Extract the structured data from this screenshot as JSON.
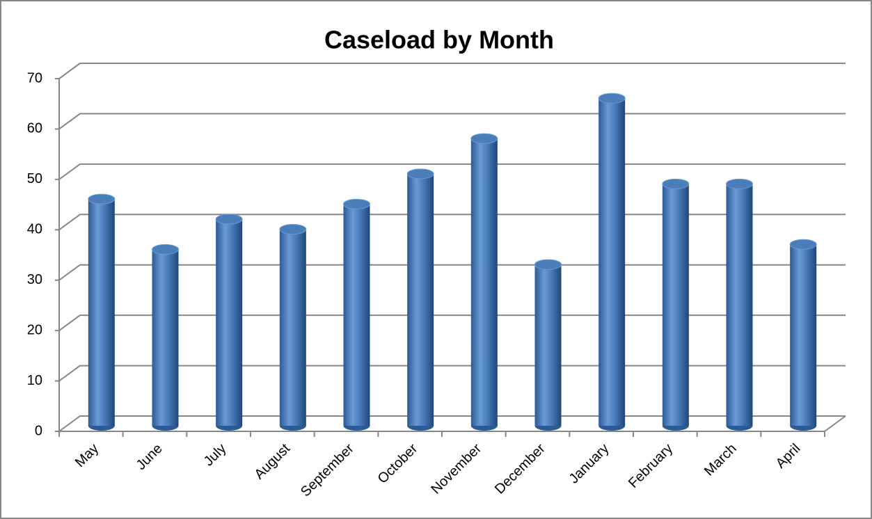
{
  "chart_data": {
    "type": "bar",
    "title": "Caseload by Month",
    "categories": [
      "May",
      "June",
      "July",
      "August",
      "September",
      "October",
      "November",
      "December",
      "January",
      "February",
      "March",
      "April"
    ],
    "values": [
      45,
      35,
      41,
      39,
      44,
      50,
      57,
      32,
      65,
      48,
      48,
      36
    ],
    "color": "#4a7ebb",
    "ylim": [
      0,
      70
    ],
    "yticks": [
      0,
      10,
      20,
      30,
      40,
      50,
      60,
      70
    ],
    "grid": true
  }
}
